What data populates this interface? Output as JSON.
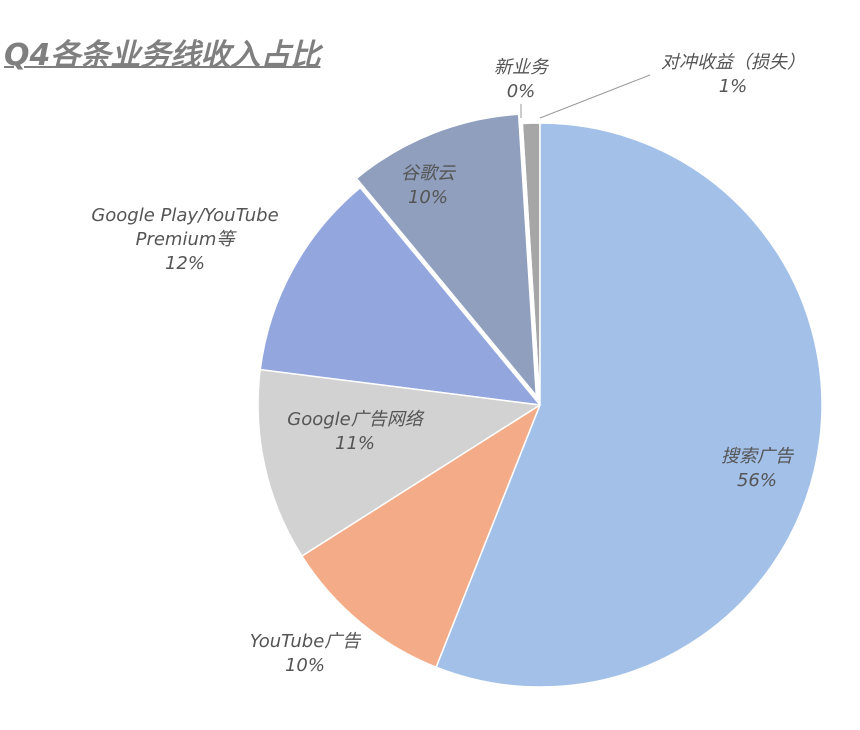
{
  "chart_data": {
    "type": "pie",
    "title": "Q4各条业务线收入占比",
    "categories": [
      "搜索广告",
      "YouTube广告",
      "Google广告网络",
      "Google Play/YouTube Premium等",
      "谷歌云",
      "新业务",
      "对冲收益（损失）"
    ],
    "values": [
      56,
      10,
      11,
      12,
      10,
      0,
      1
    ],
    "value_labels": [
      "56%",
      "10%",
      "11%",
      "12%",
      "10%",
      "0%",
      "1%"
    ],
    "colors": [
      "#a3c0e8",
      "#f4ab88",
      "#d2d2d2",
      "#93a6de",
      "#909fbd",
      "#d9622b",
      "#a6a6a6"
    ]
  }
}
